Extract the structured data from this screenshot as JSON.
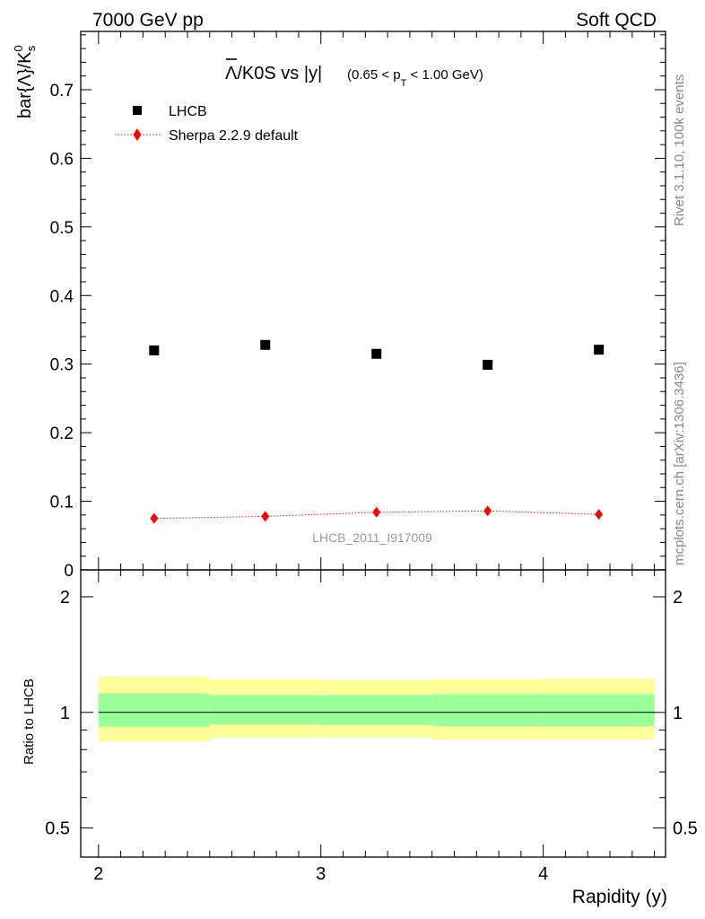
{
  "header": {
    "left": "7000 GeV pp",
    "right": "Soft QCD"
  },
  "side_text": {
    "top": "Rivet 3.1.10,  100k events",
    "bottom": "mcplots.cern.ch [arXiv:1306.3436]"
  },
  "chart_data": [
    {
      "type": "scatter",
      "title_main": "Λ/K0S vs |y|",
      "title_range": "(0.65 < p",
      "title_sub": "T",
      "title_tail": " < 1.00 GeV)",
      "ylabel": "bar{Λ}/K",
      "ylabel_sup": "0",
      "ylabel_sub": "s",
      "watermark": "LHCB_2011_I917009",
      "xlim": [
        1.92,
        4.55
      ],
      "ylim": [
        0,
        0.785
      ],
      "yticks": [
        0,
        0.1,
        0.2,
        0.3,
        0.4,
        0.5,
        0.6,
        0.7
      ],
      "ytick_labels": [
        "0",
        "0.1",
        "0.2",
        "0.3",
        "0.4",
        "0.5",
        "0.6",
        "0.7"
      ],
      "series": [
        {
          "name": "LHCB",
          "color": "#000000",
          "marker": "square",
          "x": [
            2.25,
            2.75,
            3.25,
            3.75,
            4.25
          ],
          "y": [
            0.32,
            0.328,
            0.315,
            0.299,
            0.321
          ]
        },
        {
          "name": "Sherpa 2.2.9 default",
          "color": "#ff0000",
          "marker": "diamond",
          "line": "dotted",
          "x": [
            2.25,
            2.75,
            3.25,
            3.75,
            4.25
          ],
          "y": [
            0.075,
            0.078,
            0.084,
            0.086,
            0.081
          ]
        }
      ]
    },
    {
      "type": "area",
      "ylabel": "Ratio to LHCB",
      "xlabel": "Rapidity (y)",
      "xlim": [
        1.92,
        4.55
      ],
      "ylim": [
        0.42,
        2.35
      ],
      "log_y": true,
      "yticks": [
        0.5,
        1,
        2
      ],
      "ytick_labels": [
        "0.5",
        "1",
        "2"
      ],
      "xticks": [
        2,
        3,
        4
      ],
      "xtick_labels": [
        "2",
        "3",
        "4"
      ],
      "reference_line": 1,
      "bins": [
        {
          "lo": 2.0,
          "hi": 2.5,
          "inner": [
            0.918,
            1.12
          ],
          "outer": [
            0.84,
            1.24
          ]
        },
        {
          "lo": 2.5,
          "hi": 3.0,
          "inner": [
            0.93,
            1.11
          ],
          "outer": [
            0.86,
            1.22
          ]
        },
        {
          "lo": 3.0,
          "hi": 3.5,
          "inner": [
            0.928,
            1.11
          ],
          "outer": [
            0.86,
            1.215
          ]
        },
        {
          "lo": 3.5,
          "hi": 4.0,
          "inner": [
            0.92,
            1.115
          ],
          "outer": [
            0.85,
            1.22
          ]
        },
        {
          "lo": 4.0,
          "hi": 4.5,
          "inner": [
            0.92,
            1.115
          ],
          "outer": [
            0.85,
            1.225
          ]
        }
      ],
      "band_colors": {
        "inner": "#99ff99",
        "outer": "#ffff99"
      }
    }
  ]
}
